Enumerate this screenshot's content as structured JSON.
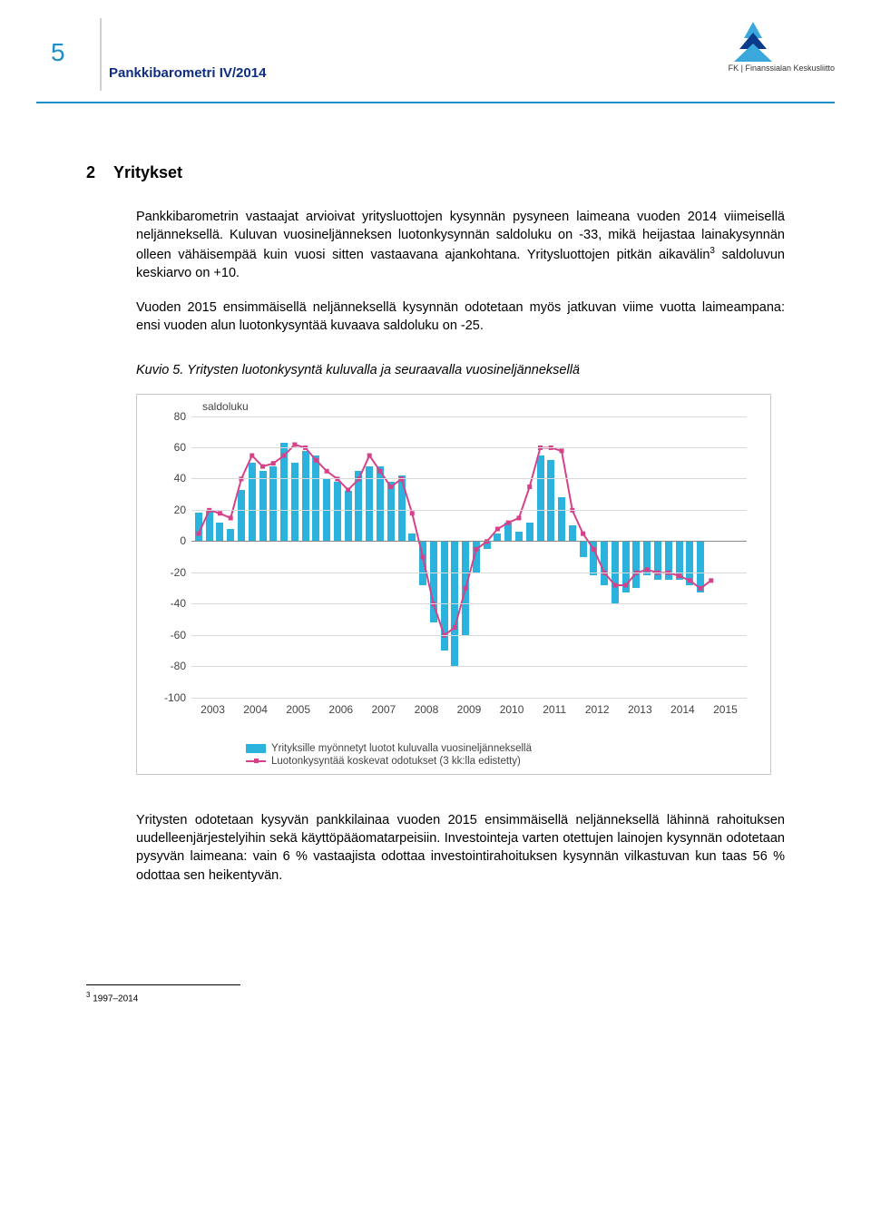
{
  "header": {
    "page_number": "5",
    "doc_title": "Pankkibarometri IV/2014",
    "logo_text": "FK | Finanssialan Keskusliitto"
  },
  "section": {
    "number": "2",
    "title": "Yritykset"
  },
  "paragraphs": {
    "p1": "Pankkibarometrin vastaajat arvioivat yritysluottojen kysynnän pysyneen laimeana vuoden 2014 viimeisellä neljänneksellä. Kuluvan vuosineljänneksen luotonkysynnän saldoluku on -33, mikä heijastaa lainakysynnän olleen vähäisempää kuin vuosi sitten vastaavana ajankohtana. Yritysluottojen pitkän aikavälin",
    "p1_sup": "3",
    "p1_tail": " saldoluvun keskiarvo on +10.",
    "p2": "Vuoden 2015 ensimmäisellä neljänneksellä kysynnän odotetaan myös jatkuvan viime vuotta laimeampana: ensi vuoden alun luotonkysyntää kuvaava saldoluku on -25.",
    "p3": "Yritysten odotetaan kysyvän pankkilainaa vuoden 2015 ensimmäisellä neljänneksellä lähinnä rahoituksen uudelleenjärjestelyihin sekä käyttöpääomatarpeisiin. Investointeja varten otettujen lainojen kysynnän odotetaan pysyvän laimeana: vain 6 % vastaajista odottaa investointirahoituksen kysynnän vilkastuvan kun taas 56 % odottaa sen heikentyvän."
  },
  "caption": {
    "label": "Kuvio 5.",
    "text": " Yritysten luotonkysyntä kuluvalla ja seuraavalla vuosineljänneksellä"
  },
  "chart": {
    "y_axis_label": "saldoluku",
    "ylim": [
      -100,
      80
    ],
    "ytick_step": 20,
    "yticks": [
      80,
      60,
      40,
      20,
      0,
      -20,
      -40,
      -60,
      -80,
      -100
    ],
    "xlabels": [
      "2003",
      "2004",
      "2005",
      "2006",
      "2007",
      "2008",
      "2009",
      "2010",
      "2011",
      "2012",
      "2013",
      "2014",
      "2015"
    ],
    "bar_color": "#2bb3de",
    "line_color": "#d6428a",
    "grid_color": "#d9d9d9",
    "axis_color": "#888888",
    "background": "#ffffff",
    "bar_values": [
      18,
      20,
      12,
      8,
      33,
      50,
      45,
      48,
      63,
      50,
      58,
      55,
      40,
      38,
      32,
      45,
      48,
      48,
      38,
      42,
      5,
      -28,
      -52,
      -70,
      -80,
      -60,
      -20,
      -5,
      5,
      12,
      6,
      12,
      55,
      52,
      28,
      10,
      -10,
      -22,
      -28,
      -40,
      -33,
      -30,
      -22,
      -25,
      -25,
      -25,
      -28,
      -33
    ],
    "line_values": [
      5,
      20,
      18,
      15,
      40,
      55,
      48,
      50,
      55,
      62,
      60,
      52,
      45,
      40,
      33,
      40,
      55,
      45,
      35,
      40,
      18,
      -10,
      -40,
      -60,
      -55,
      -30,
      -5,
      0,
      8,
      12,
      15,
      35,
      60,
      60,
      58,
      20,
      5,
      -5,
      -20,
      -28,
      -28,
      -20,
      -18,
      -20,
      -20,
      -22,
      -25,
      -30,
      -25
    ],
    "legend1": "Yrityksille myönnetyt luotot kuluvalla vuosineljänneksellä",
    "legend2": "Luotonkysyntää koskevat odotukset (3 kk:lla edistetty)"
  },
  "footnote": {
    "sup": "3",
    "text": " 1997–2014"
  },
  "colors": {
    "header_accent": "#1a8fc9",
    "title_color": "#0f2d80",
    "logo_blue_light": "#3aa8dc",
    "logo_blue_dark": "#0a3a8a"
  }
}
